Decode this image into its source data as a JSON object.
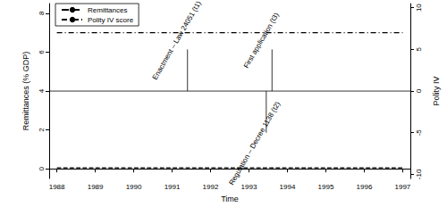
{
  "chart_data": {
    "type": "line",
    "x_label": "Time",
    "y_label": "Remittances (% GDP)",
    "y2_label": "Polity IV",
    "x": [
      1988,
      1989,
      1990,
      1991,
      1992,
      1993,
      1994,
      1995,
      1996,
      1997
    ],
    "series": [
      {
        "name": "Remittances",
        "color": "#000000",
        "line_style": "dashed",
        "values": [
          0.05,
          0.05,
          0.05,
          0.05,
          0.05,
          0.05,
          0.05,
          0.05,
          0.05,
          0.05
        ]
      },
      {
        "name": "Polity IV score",
        "color": "#000000",
        "line_style": "dashdot",
        "axis": "y2",
        "values": [
          7,
          7,
          7,
          7,
          7,
          7,
          7,
          7,
          7,
          7
        ]
      }
    ],
    "xlim": [
      1987.8,
      1997.2
    ],
    "xticks": [
      1988,
      1989,
      1990,
      1991,
      1992,
      1993,
      1994,
      1995,
      1996,
      1997
    ],
    "ylim": [
      -0.5,
      8.5
    ],
    "yticks": [
      0,
      2,
      4,
      6,
      8
    ],
    "y2lim": [
      -10.5,
      10.5
    ],
    "y2ticks": [
      -10,
      -5,
      0,
      5,
      10
    ],
    "reference_line": {
      "axis": "y2",
      "y": 0
    },
    "annotations": [
      {
        "text": "Enactment – Law 24051 (t1)",
        "x": 1991.4,
        "y_start": 0,
        "y_end": 5,
        "axis": "y2"
      },
      {
        "text": "Regulation – Decree 1138 (t2)",
        "x": 1993.45,
        "y_start": 0,
        "y_end": -5,
        "axis": "y2"
      },
      {
        "text": "First application (t3)",
        "x": 1993.6,
        "y_start": 0,
        "y_end": 5,
        "axis": "y2"
      }
    ],
    "legend": "upper left",
    "grid": false
  }
}
